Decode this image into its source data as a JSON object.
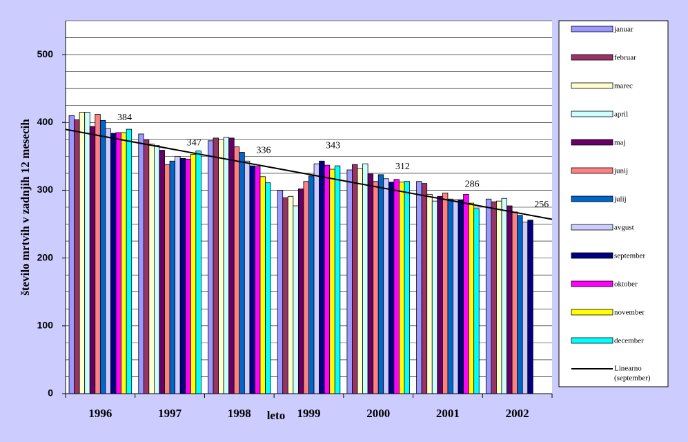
{
  "chart_data": {
    "type": "bar",
    "x_label": "leto",
    "y_label": "število mrtvih v zadnjih 12 mesecih",
    "categories": [
      "1996",
      "1997",
      "1998",
      "1999",
      "2000",
      "2001",
      "2002"
    ],
    "ylim": [
      0,
      550
    ],
    "yticks": [
      0,
      100,
      200,
      300,
      400,
      500
    ],
    "grid_lines": [
      25,
      50,
      75,
      100,
      125,
      150,
      175,
      200,
      225,
      250,
      275,
      300,
      325,
      350,
      375,
      400,
      425,
      450,
      475,
      500,
      525,
      550
    ],
    "series": [
      {
        "name": "januar",
        "color": "#9999ff",
        "values": [
          410,
          383,
          373,
          300,
          330,
          313,
          287
        ]
      },
      {
        "name": "februar",
        "color": "#993366",
        "values": [
          404,
          374,
          377,
          289,
          338,
          310,
          283
        ]
      },
      {
        "name": "marec",
        "color": "#ffffcc",
        "values": [
          415,
          368,
          375,
          291,
          332,
          294,
          284
        ]
      },
      {
        "name": "april",
        "color": "#ccffff",
        "values": [
          415,
          366,
          378,
          277,
          339,
          284,
          288
        ]
      },
      {
        "name": "maj",
        "color": "#660066",
        "values": [
          394,
          359,
          377,
          302,
          324,
          291,
          277
        ]
      },
      {
        "name": "junij",
        "color": "#ff8080",
        "values": [
          412,
          338,
          364,
          313,
          313,
          296,
          268
        ]
      },
      {
        "name": "julij",
        "color": "#0066cc",
        "values": [
          403,
          343,
          356,
          321,
          323,
          287,
          263
        ]
      },
      {
        "name": "avgust",
        "color": "#ccccff",
        "values": [
          391,
          350,
          343,
          339,
          317,
          286,
          253
        ]
      },
      {
        "name": "september",
        "color": "#000080",
        "values": [
          384,
          347,
          336,
          343,
          312,
          286,
          256
        ],
        "labels": true
      },
      {
        "name": "oktober",
        "color": "#ff00ff",
        "values": [
          385,
          346,
          335,
          337,
          316,
          294,
          null
        ]
      },
      {
        "name": "november",
        "color": "#ffff00",
        "values": [
          385,
          353,
          320,
          331,
          312,
          281,
          null
        ]
      },
      {
        "name": "december",
        "color": "#00ffff",
        "values": [
          390,
          358,
          311,
          336,
          313,
          273,
          null
        ]
      }
    ],
    "trendline": {
      "name_lines": [
        "Linearno",
        "(september)"
      ],
      "series": 8,
      "color": "#000000"
    }
  }
}
